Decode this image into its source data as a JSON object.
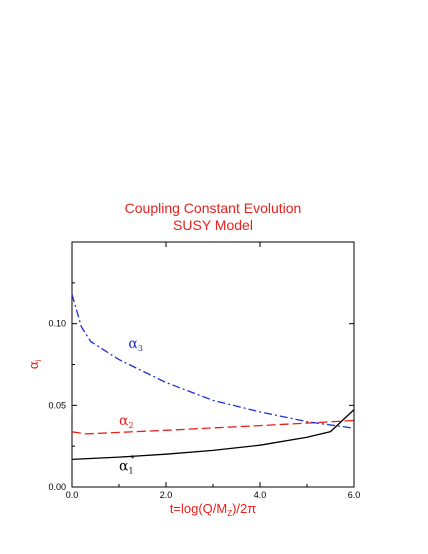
{
  "chart_data": {
    "type": "line",
    "title": "Coupling Constant Evolution",
    "subtitle": "SUSY Model",
    "xlabel": "t=log(Q/M",
    "xlabel_sub": "Z",
    "xlabel_tail": ")/2π",
    "ylabel": "α",
    "ylabel_sub": "i",
    "xlim": [
      0.0,
      6.0
    ],
    "ylim": [
      0.0,
      0.15
    ],
    "xticks": [
      0.0,
      2.0,
      4.0,
      6.0
    ],
    "xtick_labels": [
      "0.0",
      "2.0",
      "4.0",
      "6.0"
    ],
    "yticks": [
      0.0,
      0.05,
      0.1
    ],
    "ytick_labels": [
      "0.00",
      "0.05",
      "0.10"
    ],
    "grid": false,
    "series": [
      {
        "name": "α",
        "sub": "1",
        "sup": "*",
        "color": "#000000",
        "style": "solid",
        "x": [
          0.0,
          1.0,
          2.0,
          3.0,
          4.0,
          5.0,
          5.5,
          6.0
        ],
        "y": [
          0.0169,
          0.0183,
          0.0201,
          0.0224,
          0.0256,
          0.0304,
          0.0339,
          0.0474
        ]
      },
      {
        "name": "α",
        "sub": "2",
        "color": "#e8201c",
        "style": "dashed",
        "x": [
          0.0,
          0.3,
          1.0,
          2.0,
          3.0,
          4.0,
          5.0,
          6.0
        ],
        "y": [
          0.0338,
          0.0325,
          0.0334,
          0.0347,
          0.0362,
          0.0376,
          0.0391,
          0.0407
        ]
      },
      {
        "name": "α",
        "sub": "3",
        "color": "#1f2fd6",
        "style": "dashdot",
        "x": [
          0.0,
          0.1,
          0.2,
          0.4,
          1.0,
          2.0,
          3.0,
          4.0,
          5.0,
          6.0
        ],
        "y": [
          0.118,
          0.108,
          0.098,
          0.089,
          0.078,
          0.064,
          0.053,
          0.046,
          0.04,
          0.036
        ]
      }
    ],
    "annotations": [
      {
        "series": 2,
        "x": 1.2,
        "y": 0.085
      },
      {
        "series": 1,
        "x": 1.0,
        "y": 0.038
      },
      {
        "series": 0,
        "x": 1.0,
        "y": 0.01
      }
    ]
  }
}
